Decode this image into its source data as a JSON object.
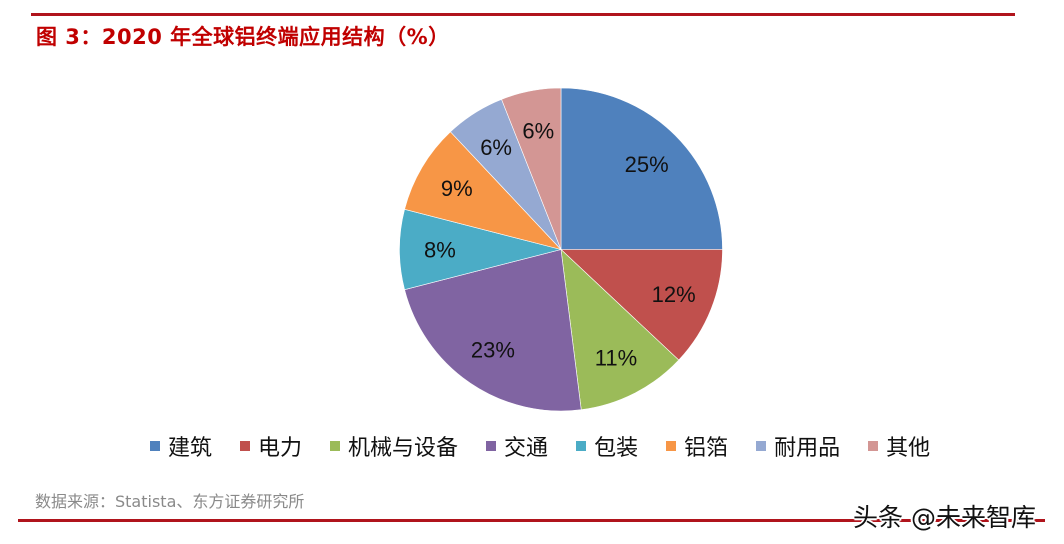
{
  "header": {
    "title": "图 3：2020 年全球铝终端应用结构（%）"
  },
  "chart_data": {
    "type": "pie",
    "title": "图 3：2020 年全球铝终端应用结构（%）",
    "start_angle": "12 o'clock",
    "direction": "clockwise",
    "categories": [
      "建筑",
      "电力",
      "机械与设备",
      "交通",
      "包装",
      "铝箔",
      "耐用品",
      "其他"
    ],
    "values": [
      25,
      12,
      11,
      23,
      8,
      9,
      6,
      6
    ],
    "labels": [
      "25%",
      "12%",
      "11%",
      "23%",
      "8%",
      "9%",
      "6%",
      "6%"
    ],
    "colors": [
      "#4F81BD",
      "#C0504D",
      "#9BBB59",
      "#8064A2",
      "#4BACC6",
      "#F79646",
      "#95A9D2",
      "#D39694"
    ],
    "legend_position": "bottom",
    "unit": "%"
  },
  "legend": {
    "items": [
      {
        "label": "建筑",
        "color": "#4F81BD"
      },
      {
        "label": "电力",
        "color": "#C0504D"
      },
      {
        "label": "机械与设备",
        "color": "#9BBB59"
      },
      {
        "label": "交通",
        "color": "#8064A2"
      },
      {
        "label": "包装",
        "color": "#4BACC6"
      },
      {
        "label": "铝箔",
        "color": "#F79646"
      },
      {
        "label": "耐用品",
        "color": "#95A9D2"
      },
      {
        "label": "其他",
        "color": "#D39694"
      }
    ]
  },
  "footer": {
    "source": "数据来源：Statista、东方证券研究所",
    "watermark": "头条 @未来智库"
  },
  "colors": {
    "rule": "#B0141C",
    "title": "#C00000"
  }
}
